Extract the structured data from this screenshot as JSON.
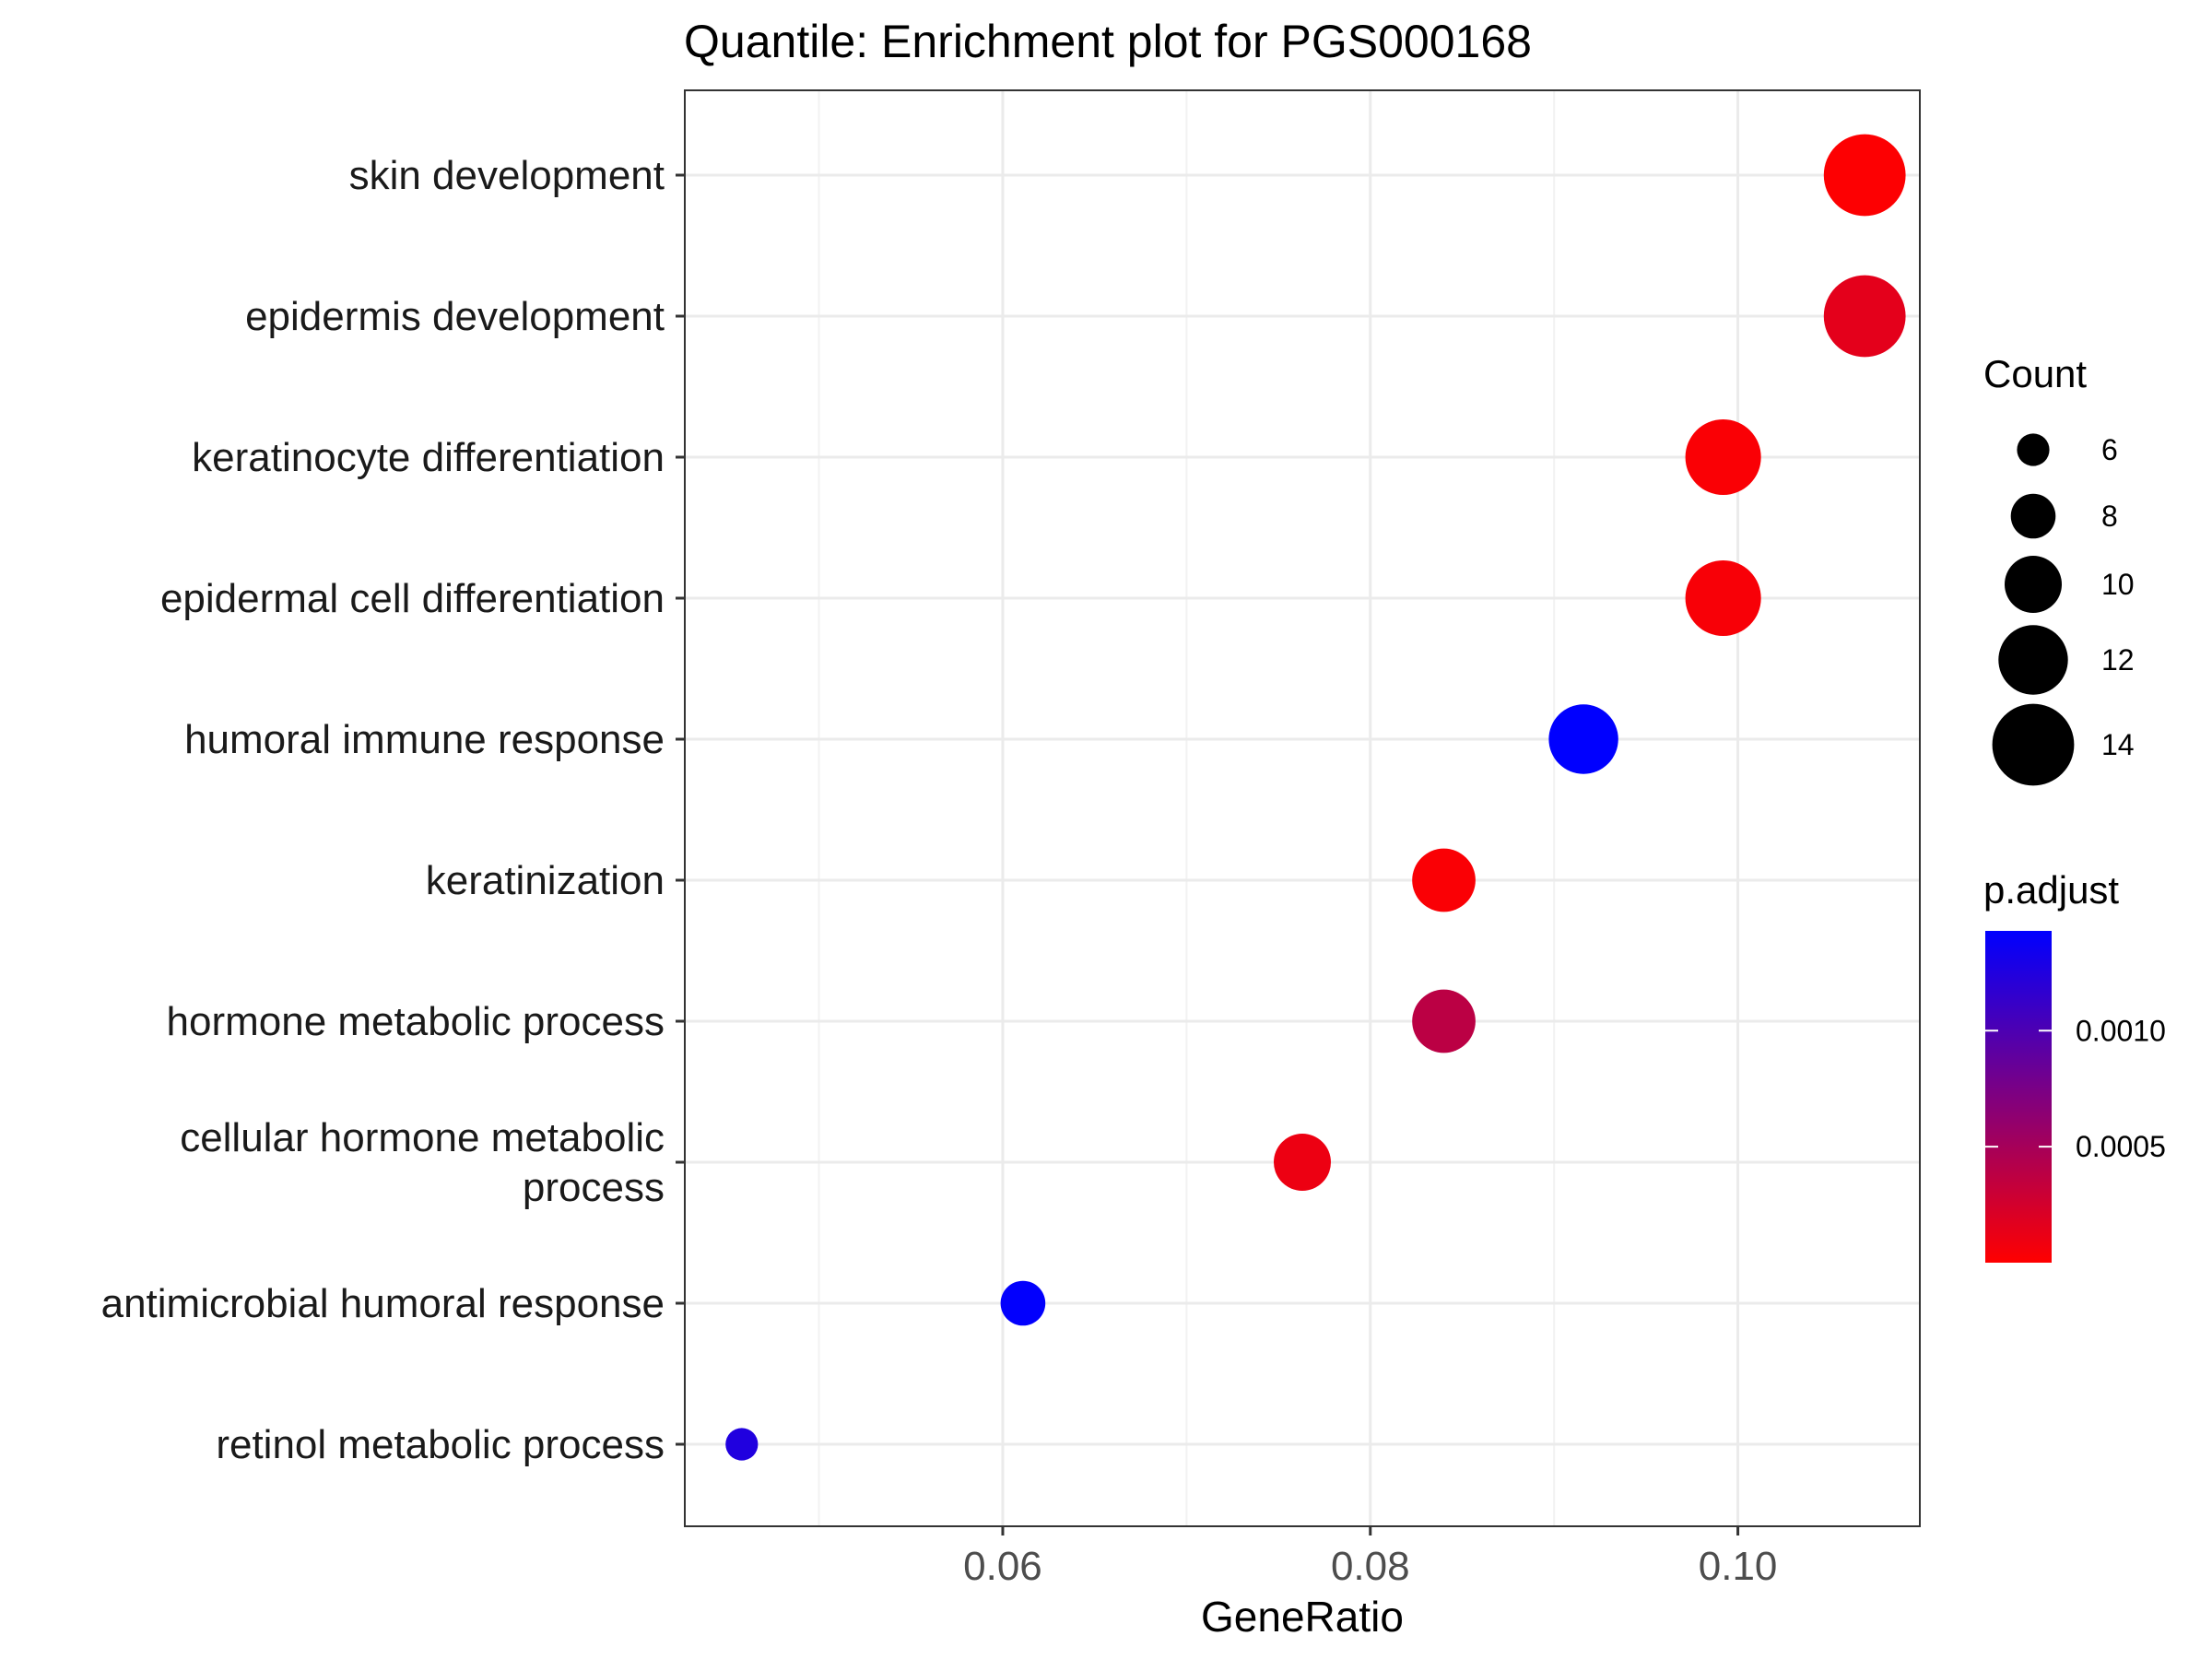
{
  "chart_data": {
    "type": "scatter",
    "title": "Quantile: Enrichment plot for PGS000168",
    "xlabel": "GeneRatio",
    "ylabel": "",
    "xlim": [
      0.0427,
      0.1099
    ],
    "x_ticks": [
      0.06,
      0.08,
      0.1
    ],
    "x_tick_labels": [
      "0.06",
      "0.08",
      "0.10"
    ],
    "grid": true,
    "categories": [
      "skin development",
      "epidermis development",
      "keratinocyte differentiation",
      "epidermal cell differentiation",
      "humoral immune response",
      "keratinization",
      "hormone metabolic process",
      "cellular hormone metabolic process",
      "antimicrobial humoral response",
      "retinol metabolic process"
    ],
    "points": [
      {
        "category": "skin development",
        "x": 0.1069,
        "count": 14,
        "p_adjust": 1e-05
      },
      {
        "category": "epidermis development",
        "x": 0.1069,
        "count": 14,
        "p_adjust": 0.00015
      },
      {
        "category": "keratinocyte differentiation",
        "x": 0.0992,
        "count": 13,
        "p_adjust": 3e-05
      },
      {
        "category": "epidermal cell differentiation",
        "x": 0.0992,
        "count": 13,
        "p_adjust": 4e-05
      },
      {
        "category": "humoral immune response",
        "x": 0.0916,
        "count": 12,
        "p_adjust": 0.00143
      },
      {
        "category": "keratinization",
        "x": 0.084,
        "count": 11,
        "p_adjust": 3e-05
      },
      {
        "category": "hormone metabolic process",
        "x": 0.084,
        "count": 11,
        "p_adjust": 0.00038
      },
      {
        "category": "cellular hormone metabolic process",
        "x": 0.0763,
        "count": 10,
        "p_adjust": 0.0001
      },
      {
        "category": "antimicrobial humoral response",
        "x": 0.0611,
        "count": 8,
        "p_adjust": 0.00142
      },
      {
        "category": "retinol metabolic process",
        "x": 0.0458,
        "count": 6,
        "p_adjust": 0.00125
      }
    ],
    "legend": {
      "placement": "right",
      "size": {
        "title": "Count",
        "values": [
          6,
          8,
          10,
          12,
          14
        ],
        "labels": [
          "6",
          "8",
          "10",
          "12",
          "14"
        ]
      },
      "color": {
        "title": "p.adjust",
        "low_color": "#FF0000",
        "high_color": "#0000FF",
        "range": [
          0.0,
          0.00143
        ],
        "ticks": [
          0.0005,
          0.001
        ],
        "tick_labels": [
          "0.0005",
          "0.0010"
        ]
      }
    }
  }
}
